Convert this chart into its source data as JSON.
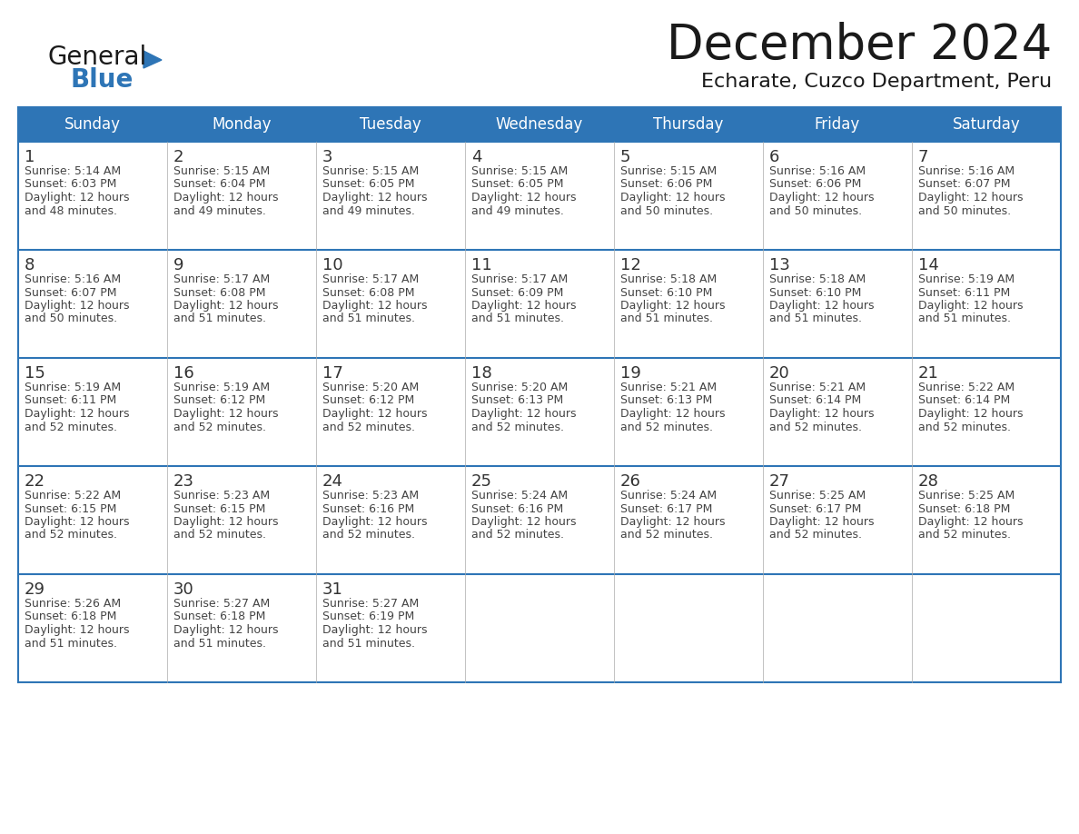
{
  "title": "December 2024",
  "subtitle": "Echarate, Cuzco Department, Peru",
  "header_bg": "#2E75B6",
  "header_text_color": "#FFFFFF",
  "cell_bg": "#FFFFFF",
  "border_color": "#2E75B6",
  "cell_border_color": "#AAAAAA",
  "text_color": "#444444",
  "day_number_color": "#333333",
  "day_headers": [
    "Sunday",
    "Monday",
    "Tuesday",
    "Wednesday",
    "Thursday",
    "Friday",
    "Saturday"
  ],
  "calendar_data": [
    [
      {
        "day": 1,
        "sunrise": "5:14 AM",
        "sunset": "6:03 PM",
        "daylight_suffix": "48 minutes."
      },
      {
        "day": 2,
        "sunrise": "5:15 AM",
        "sunset": "6:04 PM",
        "daylight_suffix": "49 minutes."
      },
      {
        "day": 3,
        "sunrise": "5:15 AM",
        "sunset": "6:05 PM",
        "daylight_suffix": "49 minutes."
      },
      {
        "day": 4,
        "sunrise": "5:15 AM",
        "sunset": "6:05 PM",
        "daylight_suffix": "49 minutes."
      },
      {
        "day": 5,
        "sunrise": "5:15 AM",
        "sunset": "6:06 PM",
        "daylight_suffix": "50 minutes."
      },
      {
        "day": 6,
        "sunrise": "5:16 AM",
        "sunset": "6:06 PM",
        "daylight_suffix": "50 minutes."
      },
      {
        "day": 7,
        "sunrise": "5:16 AM",
        "sunset": "6:07 PM",
        "daylight_suffix": "50 minutes."
      }
    ],
    [
      {
        "day": 8,
        "sunrise": "5:16 AM",
        "sunset": "6:07 PM",
        "daylight_suffix": "50 minutes."
      },
      {
        "day": 9,
        "sunrise": "5:17 AM",
        "sunset": "6:08 PM",
        "daylight_suffix": "51 minutes."
      },
      {
        "day": 10,
        "sunrise": "5:17 AM",
        "sunset": "6:08 PM",
        "daylight_suffix": "51 minutes."
      },
      {
        "day": 11,
        "sunrise": "5:17 AM",
        "sunset": "6:09 PM",
        "daylight_suffix": "51 minutes."
      },
      {
        "day": 12,
        "sunrise": "5:18 AM",
        "sunset": "6:10 PM",
        "daylight_suffix": "51 minutes."
      },
      {
        "day": 13,
        "sunrise": "5:18 AM",
        "sunset": "6:10 PM",
        "daylight_suffix": "51 minutes."
      },
      {
        "day": 14,
        "sunrise": "5:19 AM",
        "sunset": "6:11 PM",
        "daylight_suffix": "51 minutes."
      }
    ],
    [
      {
        "day": 15,
        "sunrise": "5:19 AM",
        "sunset": "6:11 PM",
        "daylight_suffix": "52 minutes."
      },
      {
        "day": 16,
        "sunrise": "5:19 AM",
        "sunset": "6:12 PM",
        "daylight_suffix": "52 minutes."
      },
      {
        "day": 17,
        "sunrise": "5:20 AM",
        "sunset": "6:12 PM",
        "daylight_suffix": "52 minutes."
      },
      {
        "day": 18,
        "sunrise": "5:20 AM",
        "sunset": "6:13 PM",
        "daylight_suffix": "52 minutes."
      },
      {
        "day": 19,
        "sunrise": "5:21 AM",
        "sunset": "6:13 PM",
        "daylight_suffix": "52 minutes."
      },
      {
        "day": 20,
        "sunrise": "5:21 AM",
        "sunset": "6:14 PM",
        "daylight_suffix": "52 minutes."
      },
      {
        "day": 21,
        "sunrise": "5:22 AM",
        "sunset": "6:14 PM",
        "daylight_suffix": "52 minutes."
      }
    ],
    [
      {
        "day": 22,
        "sunrise": "5:22 AM",
        "sunset": "6:15 PM",
        "daylight_suffix": "52 minutes."
      },
      {
        "day": 23,
        "sunrise": "5:23 AM",
        "sunset": "6:15 PM",
        "daylight_suffix": "52 minutes."
      },
      {
        "day": 24,
        "sunrise": "5:23 AM",
        "sunset": "6:16 PM",
        "daylight_suffix": "52 minutes."
      },
      {
        "day": 25,
        "sunrise": "5:24 AM",
        "sunset": "6:16 PM",
        "daylight_suffix": "52 minutes."
      },
      {
        "day": 26,
        "sunrise": "5:24 AM",
        "sunset": "6:17 PM",
        "daylight_suffix": "52 minutes."
      },
      {
        "day": 27,
        "sunrise": "5:25 AM",
        "sunset": "6:17 PM",
        "daylight_suffix": "52 minutes."
      },
      {
        "day": 28,
        "sunrise": "5:25 AM",
        "sunset": "6:18 PM",
        "daylight_suffix": "52 minutes."
      }
    ],
    [
      {
        "day": 29,
        "sunrise": "5:26 AM",
        "sunset": "6:18 PM",
        "daylight_suffix": "51 minutes."
      },
      {
        "day": 30,
        "sunrise": "5:27 AM",
        "sunset": "6:18 PM",
        "daylight_suffix": "51 minutes."
      },
      {
        "day": 31,
        "sunrise": "5:27 AM",
        "sunset": "6:19 PM",
        "daylight_suffix": "51 minutes."
      },
      null,
      null,
      null,
      null
    ]
  ],
  "logo_text1": "General",
  "logo_text2": "Blue",
  "logo_triangle_color": "#2E75B6",
  "logo_text1_color": "#1a1a1a",
  "logo_text2_color": "#2E75B6",
  "title_fontsize": 38,
  "subtitle_fontsize": 16,
  "header_fontsize": 12,
  "day_num_fontsize": 13,
  "cell_text_fontsize": 9
}
